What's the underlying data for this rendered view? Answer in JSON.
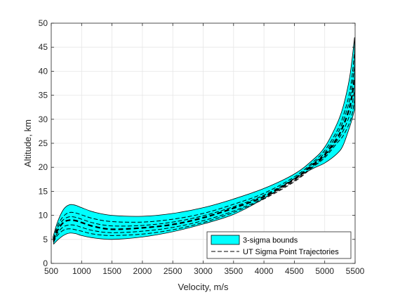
{
  "chart_data": {
    "type": "area",
    "xlabel": "Velocity, m/s",
    "ylabel": "Altitude, km",
    "xlim": [
      500,
      5500
    ],
    "ylim": [
      0,
      50
    ],
    "xticks": [
      500,
      1000,
      1500,
      2000,
      2500,
      3000,
      3500,
      4000,
      4500,
      5000,
      5500
    ],
    "yticks": [
      0,
      5,
      10,
      15,
      20,
      25,
      30,
      35,
      40,
      45,
      50
    ],
    "grid": true,
    "legend_position": "bottom-right",
    "legend": [
      {
        "label": "3-sigma bounds",
        "kind": "patch"
      },
      {
        "label": "UT Sigma Point Trajectories",
        "kind": "dashed-line"
      }
    ],
    "colors": {
      "fill": "#00FFFF",
      "edge": "#000000",
      "grid": "#E6E6E6",
      "axis": "#262626"
    },
    "band": {
      "upper": [
        [
          530,
          5.5
        ],
        [
          600,
          8.5
        ],
        [
          700,
          11.2
        ],
        [
          800,
          12.2
        ],
        [
          900,
          12.1
        ],
        [
          1000,
          11.6
        ],
        [
          1200,
          10.7
        ],
        [
          1500,
          10.0
        ],
        [
          2000,
          9.8
        ],
        [
          2500,
          10.4
        ],
        [
          3000,
          11.6
        ],
        [
          3500,
          13.4
        ],
        [
          4000,
          15.6
        ],
        [
          4500,
          18.6
        ],
        [
          4800,
          21.5
        ],
        [
          5000,
          24.2
        ],
        [
          5200,
          29.0
        ],
        [
          5300,
          32.5
        ],
        [
          5400,
          38.0
        ],
        [
          5450,
          42.5
        ],
        [
          5490,
          47.0
        ]
      ],
      "lower": [
        [
          5490,
          32.0
        ],
        [
          5450,
          30.0
        ],
        [
          5400,
          28.0
        ],
        [
          5300,
          24.5
        ],
        [
          5200,
          22.8
        ],
        [
          5000,
          20.9
        ],
        [
          4800,
          19.7
        ],
        [
          4500,
          17.6
        ],
        [
          4000,
          13.5
        ],
        [
          3500,
          10.2
        ],
        [
          3000,
          8.2
        ],
        [
          2500,
          6.6
        ],
        [
          2000,
          5.5
        ],
        [
          1500,
          5.0
        ],
        [
          1200,
          5.3
        ],
        [
          1000,
          5.8
        ],
        [
          900,
          6.2
        ],
        [
          800,
          6.3
        ],
        [
          700,
          5.8
        ],
        [
          600,
          4.8
        ],
        [
          540,
          4.0
        ]
      ]
    },
    "series": [
      {
        "style": "dashed-bold",
        "points": [
          [
            540,
            4.8
          ],
          [
            600,
            6.8
          ],
          [
            700,
            8.5
          ],
          [
            800,
            9.0
          ],
          [
            900,
            8.9
          ],
          [
            1000,
            8.5
          ],
          [
            1200,
            7.7
          ],
          [
            1500,
            7.1
          ],
          [
            2000,
            7.4
          ],
          [
            2500,
            8.1
          ],
          [
            3000,
            9.5
          ],
          [
            3500,
            11.5
          ],
          [
            4000,
            13.9
          ],
          [
            4500,
            17.5
          ],
          [
            4800,
            20.5
          ],
          [
            5000,
            22.6
          ],
          [
            5200,
            26.0
          ],
          [
            5300,
            28.5
          ],
          [
            5400,
            32.0
          ],
          [
            5450,
            35.0
          ],
          [
            5490,
            38.5
          ]
        ]
      },
      {
        "style": "dashed",
        "points": [
          [
            540,
            5.2
          ],
          [
            600,
            7.8
          ],
          [
            700,
            9.8
          ],
          [
            800,
            10.6
          ],
          [
            900,
            10.5
          ],
          [
            1000,
            10.1
          ],
          [
            1200,
            9.3
          ],
          [
            1500,
            8.7
          ],
          [
            2000,
            8.6
          ],
          [
            2500,
            9.2
          ],
          [
            3000,
            10.4
          ],
          [
            3500,
            12.3
          ],
          [
            4000,
            14.6
          ],
          [
            4500,
            18.0
          ],
          [
            4800,
            21.0
          ],
          [
            5000,
            23.5
          ],
          [
            5200,
            27.5
          ],
          [
            5300,
            30.5
          ],
          [
            5400,
            35.0
          ],
          [
            5450,
            39.0
          ],
          [
            5490,
            44.0
          ]
        ]
      },
      {
        "style": "dashed",
        "points": [
          [
            540,
            5.0
          ],
          [
            600,
            7.3
          ],
          [
            700,
            9.1
          ],
          [
            800,
            9.7
          ],
          [
            900,
            9.6
          ],
          [
            1000,
            9.2
          ],
          [
            1200,
            8.4
          ],
          [
            1500,
            7.8
          ],
          [
            2000,
            7.9
          ],
          [
            2500,
            8.6
          ],
          [
            3000,
            9.9
          ],
          [
            3500,
            11.8
          ],
          [
            4000,
            14.2
          ],
          [
            4500,
            17.7
          ],
          [
            4800,
            20.7
          ],
          [
            5000,
            23.0
          ],
          [
            5200,
            26.8
          ],
          [
            5300,
            29.5
          ],
          [
            5400,
            33.5
          ],
          [
            5450,
            37.0
          ],
          [
            5490,
            41.0
          ]
        ]
      },
      {
        "style": "dashed",
        "points": [
          [
            540,
            4.6
          ],
          [
            600,
            6.3
          ],
          [
            700,
            7.6
          ],
          [
            800,
            8.0
          ],
          [
            900,
            7.9
          ],
          [
            1000,
            7.5
          ],
          [
            1200,
            6.8
          ],
          [
            1500,
            6.4
          ],
          [
            2000,
            6.7
          ],
          [
            2500,
            7.5
          ],
          [
            3000,
            8.9
          ],
          [
            3500,
            10.9
          ],
          [
            4000,
            13.6
          ],
          [
            4500,
            17.2
          ],
          [
            4800,
            20.2
          ],
          [
            5000,
            22.3
          ],
          [
            5200,
            25.5
          ],
          [
            5300,
            27.5
          ],
          [
            5400,
            30.5
          ],
          [
            5450,
            33.0
          ],
          [
            5490,
            36.0
          ]
        ]
      },
      {
        "style": "dashed",
        "points": [
          [
            540,
            4.4
          ],
          [
            600,
            5.8
          ],
          [
            700,
            6.9
          ],
          [
            800,
            7.2
          ],
          [
            900,
            7.0
          ],
          [
            1000,
            6.7
          ],
          [
            1200,
            6.1
          ],
          [
            1500,
            5.8
          ],
          [
            2000,
            6.1
          ],
          [
            2500,
            7.0
          ],
          [
            3000,
            8.5
          ],
          [
            3500,
            10.6
          ],
          [
            4000,
            13.4
          ],
          [
            4500,
            17.0
          ],
          [
            4800,
            20.0
          ],
          [
            5000,
            22.0
          ],
          [
            5200,
            25.0
          ],
          [
            5300,
            26.5
          ],
          [
            5400,
            29.0
          ],
          [
            5450,
            31.0
          ],
          [
            5490,
            34.0
          ]
        ]
      }
    ]
  }
}
